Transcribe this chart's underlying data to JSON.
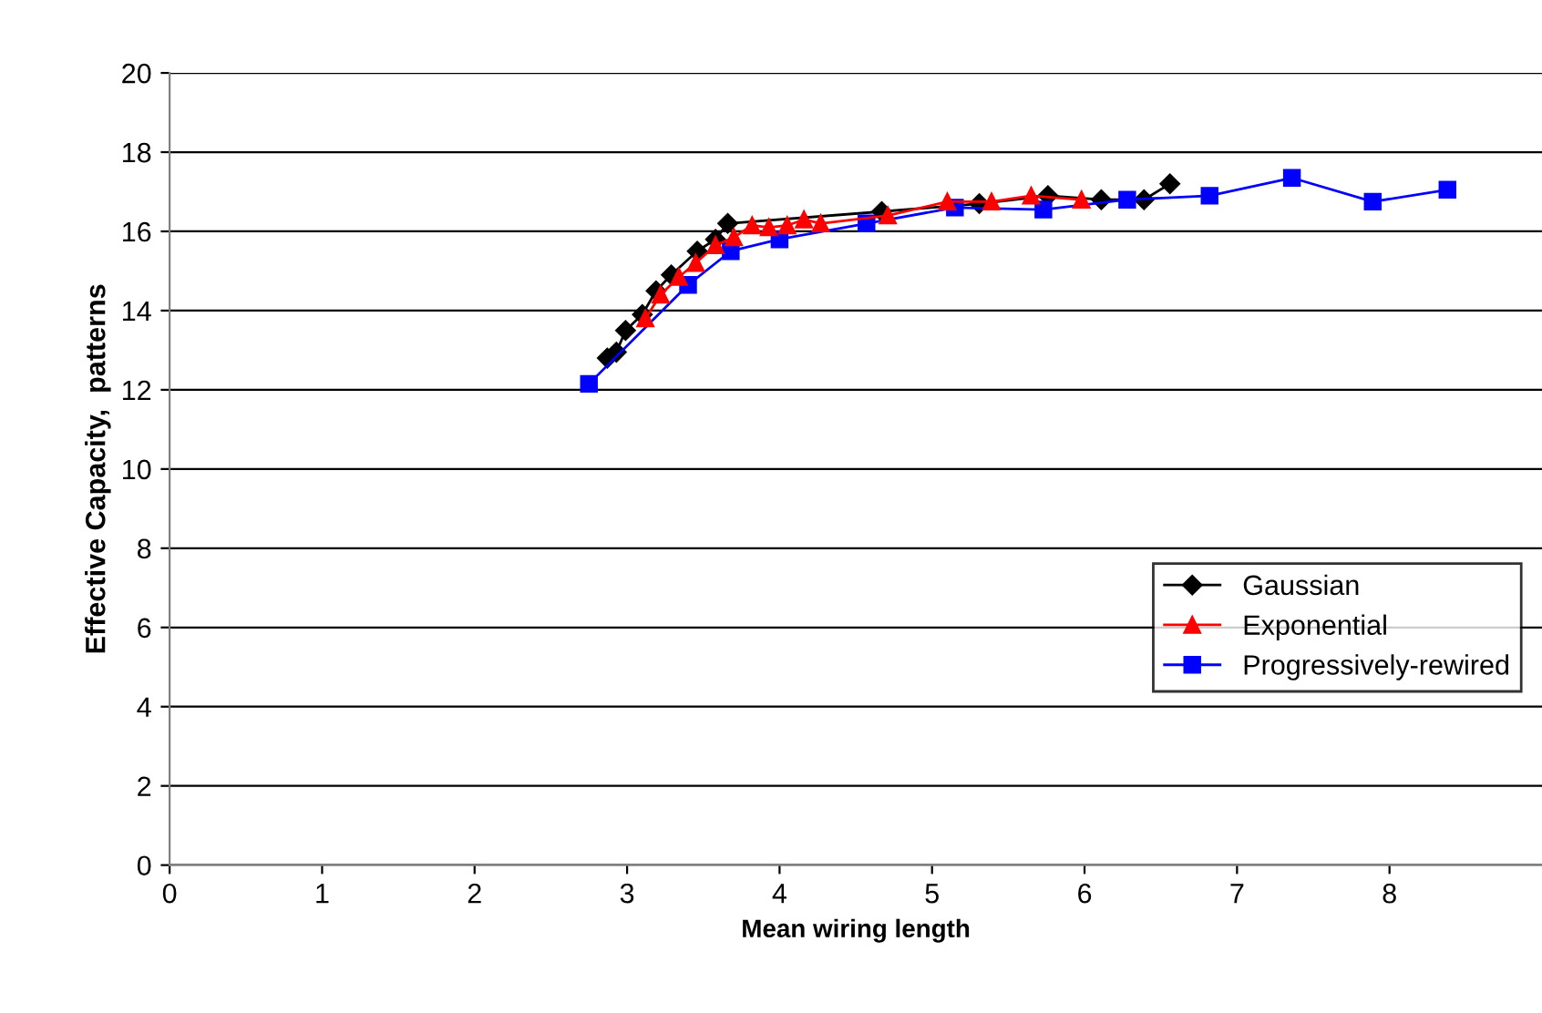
{
  "chart_data": {
    "type": "line",
    "xlabel": "Mean wiring length",
    "ylabel": "Effective Capacity,  patterns",
    "xlim": [
      0,
      9
    ],
    "xticks": [
      0,
      1,
      2,
      3,
      4,
      5,
      6,
      7,
      8
    ],
    "ylim": [
      0,
      20
    ],
    "yticks": [
      0,
      2,
      4,
      6,
      8,
      10,
      12,
      14,
      16,
      18,
      20
    ],
    "grid": "y",
    "legend": "right",
    "line_style": "solid",
    "series": [
      {
        "name": "Gaussian",
        "color": "#000000",
        "marker": "diamond",
        "x": [
          2.87,
          2.93,
          2.99,
          3.1,
          3.19,
          3.29,
          3.46,
          3.58,
          3.66,
          4.67,
          5.31,
          5.76,
          6.11,
          6.39,
          6.56
        ],
        "values": [
          12.8,
          12.95,
          13.5,
          13.9,
          14.5,
          14.9,
          15.5,
          15.8,
          16.2,
          16.5,
          16.7,
          16.9,
          16.8,
          16.8,
          17.2
        ]
      },
      {
        "name": "Exponential",
        "color": "#ff0000",
        "marker": "triangle",
        "x": [
          3.12,
          3.22,
          3.34,
          3.45,
          3.58,
          3.7,
          3.82,
          3.93,
          4.05,
          4.16,
          4.27,
          4.71,
          5.1,
          5.39,
          5.65,
          5.98
        ],
        "values": [
          13.8,
          14.4,
          14.85,
          15.2,
          15.65,
          15.85,
          16.15,
          16.1,
          16.15,
          16.3,
          16.2,
          16.4,
          16.75,
          16.75,
          16.9,
          16.8
        ]
      },
      {
        "name": "Progressively-rewired",
        "color": "#0000ff",
        "marker": "square",
        "x": [
          2.75,
          3.4,
          3.68,
          4.0,
          4.57,
          5.15,
          5.73,
          6.28,
          6.82,
          7.36,
          7.89,
          8.38
        ],
        "values": [
          12.15,
          14.65,
          15.5,
          15.8,
          16.2,
          16.6,
          16.55,
          16.8,
          16.9,
          17.35,
          16.75,
          17.05
        ]
      }
    ]
  }
}
